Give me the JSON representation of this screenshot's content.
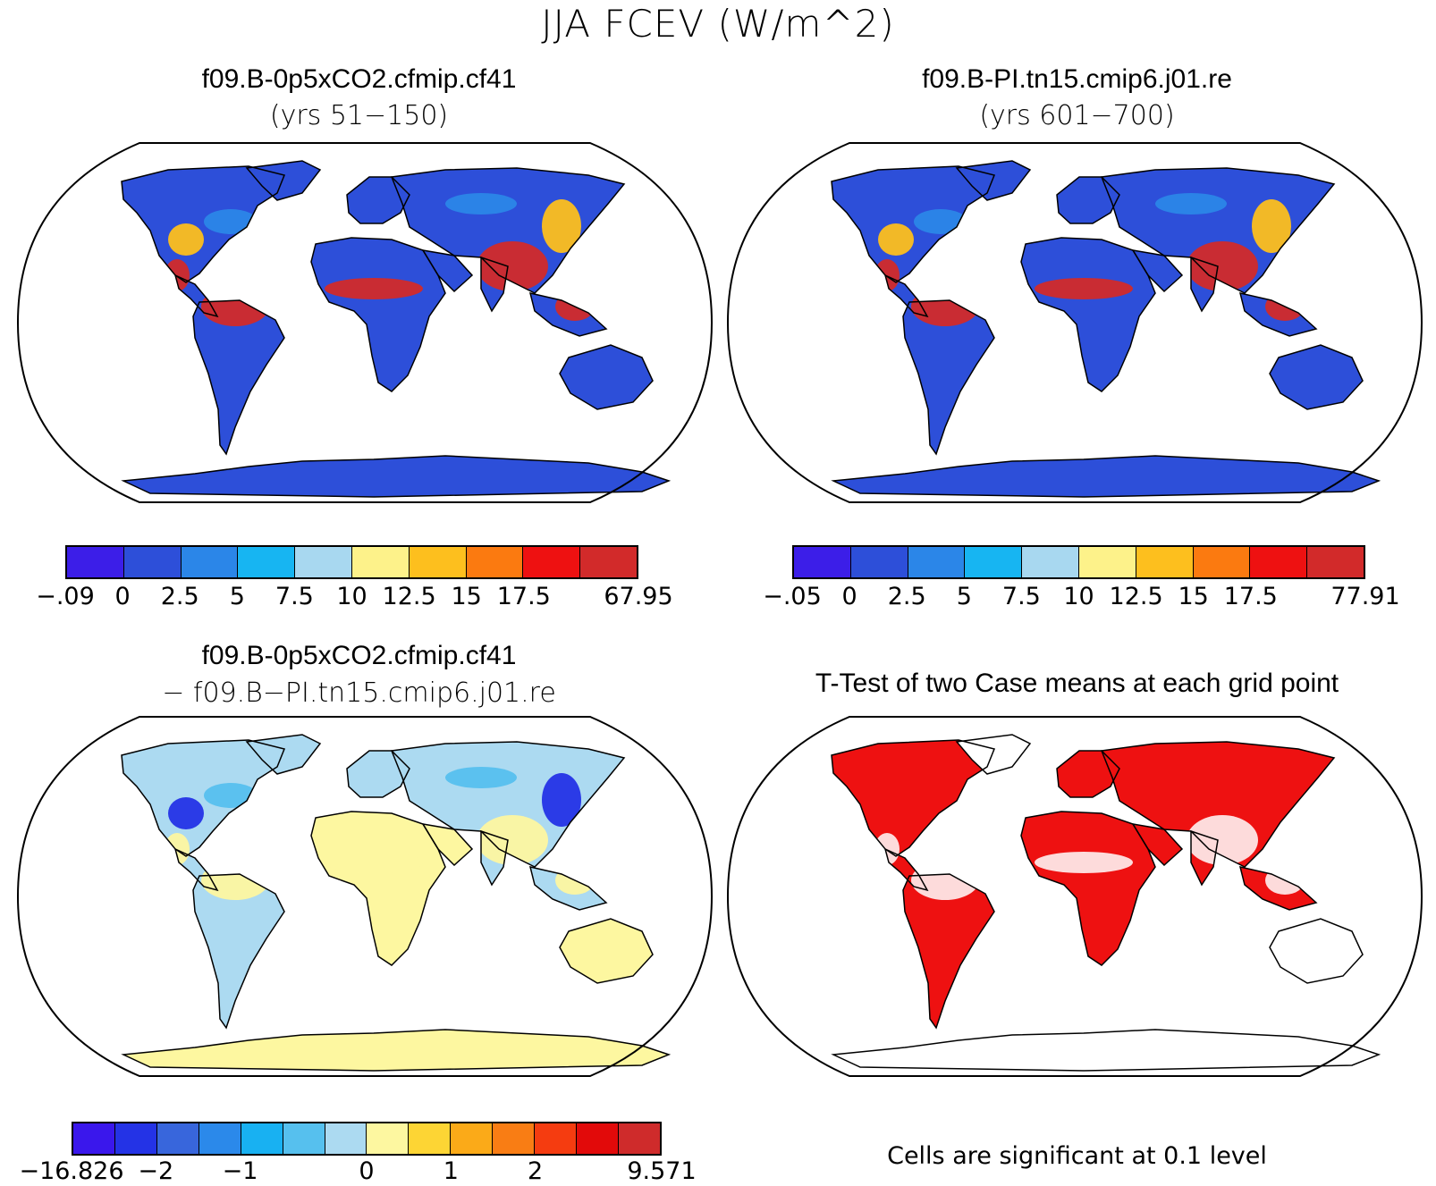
{
  "title": "JJA FCEV (W/m^2)",
  "panels": [
    {
      "title": "f09.B-0p5xCO2.cfmip.cf41",
      "subtitle": "(yrs 51−150)",
      "colorbar": {
        "colors": [
          "#3c1ee8",
          "#2d4fd9",
          "#2b86e8",
          "#17b5f2",
          "#a8d8f0",
          "#fdf28a",
          "#fdbf1e",
          "#fb7a10",
          "#ee1111",
          "#d22a2a"
        ],
        "labels": [
          "−.09",
          "0",
          "2.5",
          "5",
          "7.5",
          "10",
          "12.5",
          "15",
          "17.5",
          "67.95"
        ]
      }
    },
    {
      "title": "f09.B-PI.tn15.cmip6.j01.re",
      "subtitle": "(yrs 601−700)",
      "colorbar": {
        "colors": [
          "#3c1ee8",
          "#2d4fd9",
          "#2b86e8",
          "#17b5f2",
          "#a8d8f0",
          "#fdf28a",
          "#fdbf1e",
          "#fb7a10",
          "#ee1111",
          "#d22a2a"
        ],
        "labels": [
          "−.05",
          "0",
          "2.5",
          "5",
          "7.5",
          "10",
          "12.5",
          "15",
          "17.5",
          "77.91"
        ]
      }
    },
    {
      "title": "f09.B-0p5xCO2.cfmip.cf41",
      "subtitle": "− f09.B−PI.tn15.cmip6.j01.re",
      "colorbar": {
        "colors": [
          "#3a17ec",
          "#2433e6",
          "#3866dc",
          "#2b89ea",
          "#18b1f2",
          "#56c0ee",
          "#acdaf1",
          "#fdf7a0",
          "#fdd534",
          "#fbaa18",
          "#f97d14",
          "#f53c10",
          "#e20a0a",
          "#cf2b2b"
        ],
        "labels": [
          "−16.826",
          "−2",
          "−1",
          "0",
          "1",
          "2",
          "9.571"
        ]
      }
    },
    {
      "title": "T-Test of two Case means at each grid point",
      "note": "Cells are significant at 0.1 level"
    }
  ]
}
